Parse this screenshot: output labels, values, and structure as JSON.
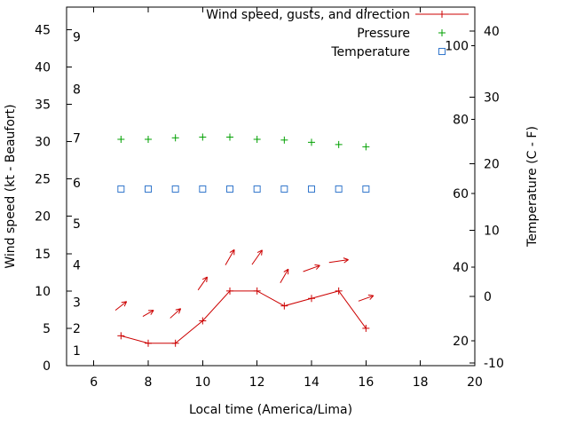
{
  "chart_data": {
    "type": "line",
    "title": "",
    "xlabel": "Local time (America/Lima)",
    "ylabel_left": "Wind speed (kt - Beaufort)",
    "ylabel_right": "Temperature (C - F)",
    "grid": false,
    "legend_position": "top-right-inside",
    "x_range": [
      5,
      20
    ],
    "x_ticks": [
      6,
      8,
      10,
      12,
      14,
      16,
      18,
      20
    ],
    "kt_range": [
      0,
      48
    ],
    "kt_ticks": [
      0,
      5,
      10,
      15,
      20,
      25,
      30,
      35,
      40,
      45
    ],
    "beaufort_ticks": [
      {
        "label": "1",
        "kt": 2
      },
      {
        "label": "2",
        "kt": 5
      },
      {
        "label": "3",
        "kt": 8.5
      },
      {
        "label": "4",
        "kt": 13.5
      },
      {
        "label": "5",
        "kt": 19
      },
      {
        "label": "6",
        "kt": 24.5
      },
      {
        "label": "7",
        "kt": 30.5
      },
      {
        "label": "8",
        "kt": 37
      },
      {
        "label": "9",
        "kt": 44
      }
    ],
    "c_range": [
      -10.4,
      43.6
    ],
    "c_ticks": [
      -10,
      0,
      10,
      20,
      30,
      40
    ],
    "f_ticks": [
      20,
      40,
      60,
      80,
      100
    ],
    "colors": {
      "wind": "#cc0000",
      "pressure": "#00a000",
      "temperature": "#3377cc",
      "axis": "#000000"
    },
    "legend": [
      {
        "label": "Wind speed, gusts, and direction",
        "marker": "line-plus",
        "color": "#cc0000"
      },
      {
        "label": "Pressure",
        "marker": "plus",
        "color": "#00a000"
      },
      {
        "label": "Temperature",
        "marker": "square",
        "color": "#3377cc"
      }
    ],
    "series": [
      {
        "name": "Wind speed (kt)",
        "type": "line-plus",
        "color": "#cc0000",
        "axis": "kt",
        "x": [
          7,
          8,
          9,
          10,
          11,
          12,
          13,
          14,
          15,
          16
        ],
        "y": [
          4,
          3,
          3,
          6,
          10,
          10,
          8,
          9,
          10,
          5
        ]
      },
      {
        "name": "Wind gusts and direction",
        "type": "arrows",
        "color": "#cc0000",
        "axis": "kt",
        "points": [
          {
            "x": 7,
            "y": 8,
            "angle_deg": 38,
            "len": 16
          },
          {
            "x": 8,
            "y": 7,
            "angle_deg": 30,
            "len": 14
          },
          {
            "x": 9,
            "y": 7,
            "angle_deg": 42,
            "len": 16
          },
          {
            "x": 10,
            "y": 11,
            "angle_deg": 55,
            "len": 18
          },
          {
            "x": 11,
            "y": 14.5,
            "angle_deg": 60,
            "len": 20
          },
          {
            "x": 12,
            "y": 14.5,
            "angle_deg": 55,
            "len": 20
          },
          {
            "x": 13,
            "y": 12,
            "angle_deg": 60,
            "len": 18
          },
          {
            "x": 14,
            "y": 13,
            "angle_deg": 20,
            "len": 20
          },
          {
            "x": 15,
            "y": 14,
            "angle_deg": 8,
            "len": 22
          },
          {
            "x": 16,
            "y": 9,
            "angle_deg": 20,
            "len": 18
          }
        ]
      },
      {
        "name": "Pressure",
        "type": "plus",
        "color": "#00a000",
        "axis": "kt",
        "x": [
          7,
          8,
          9,
          10,
          11,
          12,
          13,
          14,
          15,
          16
        ],
        "y": [
          30.3,
          30.3,
          30.5,
          30.6,
          30.6,
          30.3,
          30.2,
          29.9,
          29.6,
          29.3
        ]
      },
      {
        "name": "Temperature",
        "type": "square",
        "color": "#3377cc",
        "axis": "c",
        "x": [
          7,
          8,
          9,
          10,
          11,
          12,
          13,
          14,
          15,
          16
        ],
        "y": [
          16.2,
          16.2,
          16.2,
          16.2,
          16.2,
          16.2,
          16.2,
          16.2,
          16.2,
          16.2
        ]
      }
    ]
  }
}
